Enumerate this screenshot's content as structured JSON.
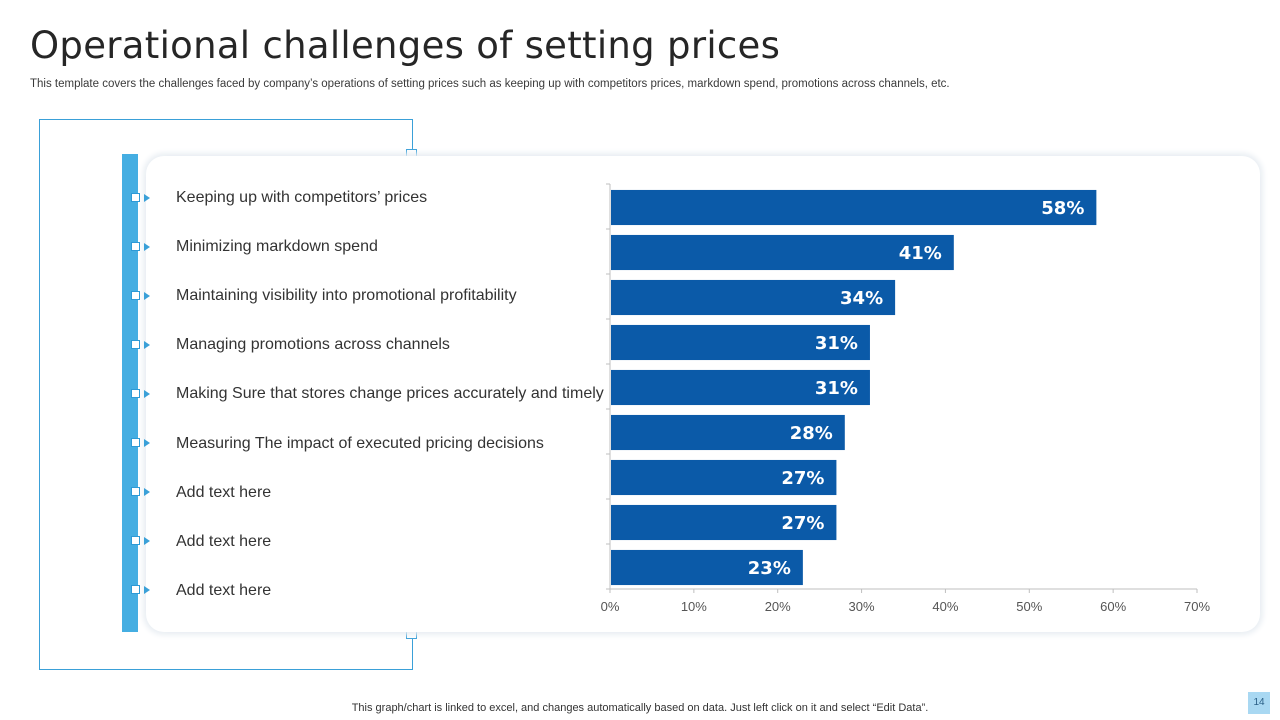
{
  "slide": {
    "title": "Operational challenges of setting prices",
    "subtitle": "This template covers the challenges faced by company’s operations of setting prices such as keeping up with competitors prices, markdown spend, promotions across channels, etc.",
    "footnote": "This graph/chart is linked to excel,  and changes automatically based on data. Just left click on it and select “Edit Data”.",
    "page_number": "14"
  },
  "items": [
    "Keeping up with competitors’ prices",
    "Minimizing markdown spend",
    "Maintaining visibility into promotional profitability",
    "Managing promotions across channels",
    "Making Sure that stores change prices accurately and timely",
    "Measuring The impact of executed pricing decisions",
    "Add text here",
    "Add text here",
    "Add text here"
  ],
  "colors": {
    "bar": "#0b5aa8",
    "accent": "#45aee2",
    "axis": "#bfbfbf"
  },
  "chart_data": {
    "type": "bar",
    "orientation": "horizontal",
    "categories": [
      "Keeping up with competitors’ prices",
      "Minimizing markdown spend",
      "Maintaining visibility into promotional profitability",
      "Managing promotions across channels",
      "Making Sure that stores change prices accurately and timely",
      "Measuring The impact of executed pricing decisions",
      "Add text here",
      "Add text here",
      "Add text here"
    ],
    "values": [
      58,
      41,
      34,
      31,
      31,
      28,
      27,
      27,
      23
    ],
    "value_labels": [
      "58%",
      "41%",
      "34%",
      "31%",
      "31%",
      "28%",
      "27%",
      "27%",
      "23%"
    ],
    "xlim": [
      0,
      70
    ],
    "xticks": [
      0,
      10,
      20,
      30,
      40,
      50,
      60,
      70
    ],
    "xtick_labels": [
      "0%",
      "10%",
      "20%",
      "30%",
      "40%",
      "50%",
      "60%",
      "70%"
    ],
    "title": "",
    "xlabel": "",
    "ylabel": "",
    "grid": false,
    "legend": false
  }
}
